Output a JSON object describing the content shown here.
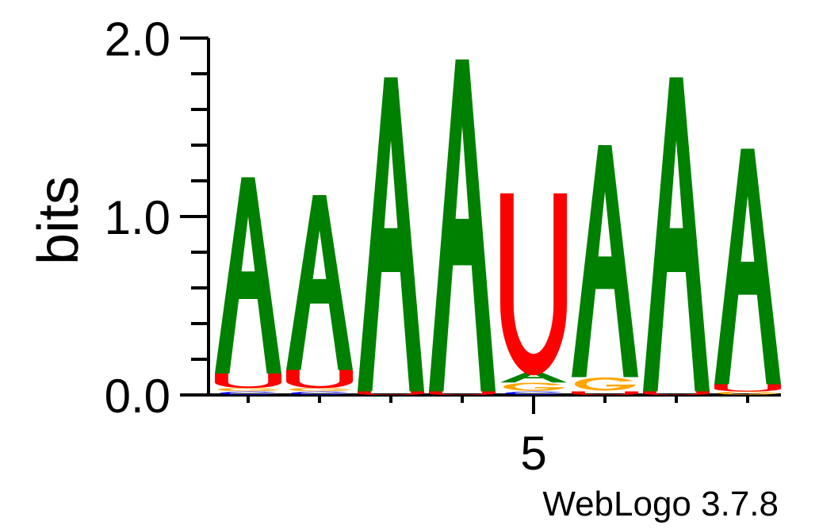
{
  "chart_data": {
    "type": "sequence-logo",
    "ylabel": "bits",
    "ylim": [
      0,
      2.0
    ],
    "yticks": [
      "0.0",
      "1.0",
      "2.0"
    ],
    "xticks_labeled": [
      {
        "position": 5,
        "label": "5"
      }
    ],
    "colors": {
      "A": "#008000",
      "U": "#ff0000",
      "G": "#ffa500",
      "C": "#0000ff"
    },
    "positions": [
      {
        "pos": 1,
        "letters": [
          {
            "base": "C",
            "bits": 0.02
          },
          {
            "base": "G",
            "bits": 0.02
          },
          {
            "base": "U",
            "bits": 0.08
          },
          {
            "base": "A",
            "bits": 1.1
          }
        ]
      },
      {
        "pos": 2,
        "letters": [
          {
            "base": "C",
            "bits": 0.02
          },
          {
            "base": "G",
            "bits": 0.02
          },
          {
            "base": "U",
            "bits": 0.1
          },
          {
            "base": "A",
            "bits": 0.98
          }
        ]
      },
      {
        "pos": 3,
        "letters": [
          {
            "base": "U",
            "bits": 0.02
          },
          {
            "base": "A",
            "bits": 1.76
          }
        ]
      },
      {
        "pos": 4,
        "letters": [
          {
            "base": "U",
            "bits": 0.02
          },
          {
            "base": "A",
            "bits": 1.86
          }
        ]
      },
      {
        "pos": 5,
        "letters": [
          {
            "base": "C",
            "bits": 0.02
          },
          {
            "base": "G",
            "bits": 0.05
          },
          {
            "base": "A",
            "bits": 0.06
          },
          {
            "base": "U",
            "bits": 1.0
          }
        ]
      },
      {
        "pos": 6,
        "letters": [
          {
            "base": "U",
            "bits": 0.02
          },
          {
            "base": "G",
            "bits": 0.08
          },
          {
            "base": "A",
            "bits": 1.3
          }
        ]
      },
      {
        "pos": 7,
        "letters": [
          {
            "base": "U",
            "bits": 0.02
          },
          {
            "base": "A",
            "bits": 1.76
          }
        ]
      },
      {
        "pos": 8,
        "letters": [
          {
            "base": "G",
            "bits": 0.02
          },
          {
            "base": "U",
            "bits": 0.04
          },
          {
            "base": "A",
            "bits": 1.32
          }
        ]
      }
    ]
  },
  "footer": {
    "credit": "WebLogo 3.7.8"
  }
}
